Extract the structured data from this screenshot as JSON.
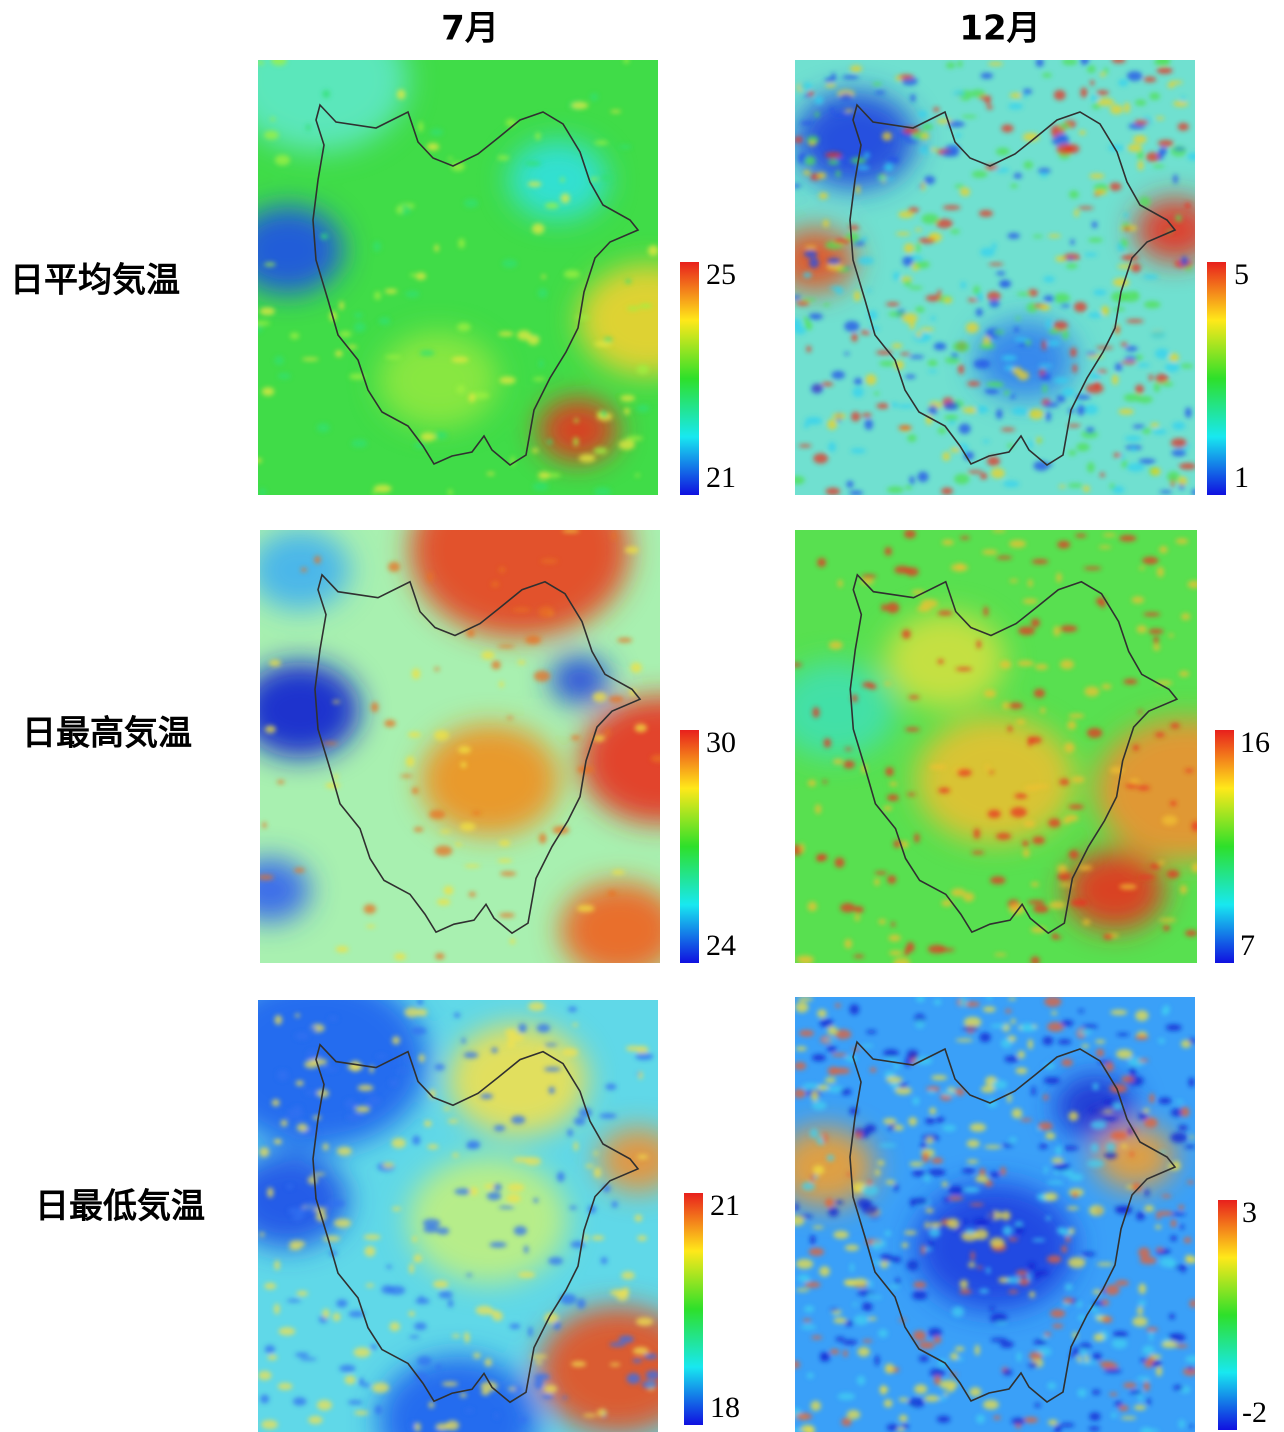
{
  "column_headers": [
    "7月",
    "12月"
  ],
  "rows": [
    {
      "label": "日平均気温",
      "panels": [
        {
          "max": 25,
          "min": 21
        },
        {
          "max": 5,
          "min": 1
        }
      ]
    },
    {
      "label": "日最高気温",
      "panels": [
        {
          "max": 30,
          "min": 24
        },
        {
          "max": 16,
          "min": 7
        }
      ]
    },
    {
      "label": "日最低気温",
      "panels": [
        {
          "max": 21,
          "min": 18
        },
        {
          "max": 3,
          "min": -2
        }
      ]
    }
  ]
}
